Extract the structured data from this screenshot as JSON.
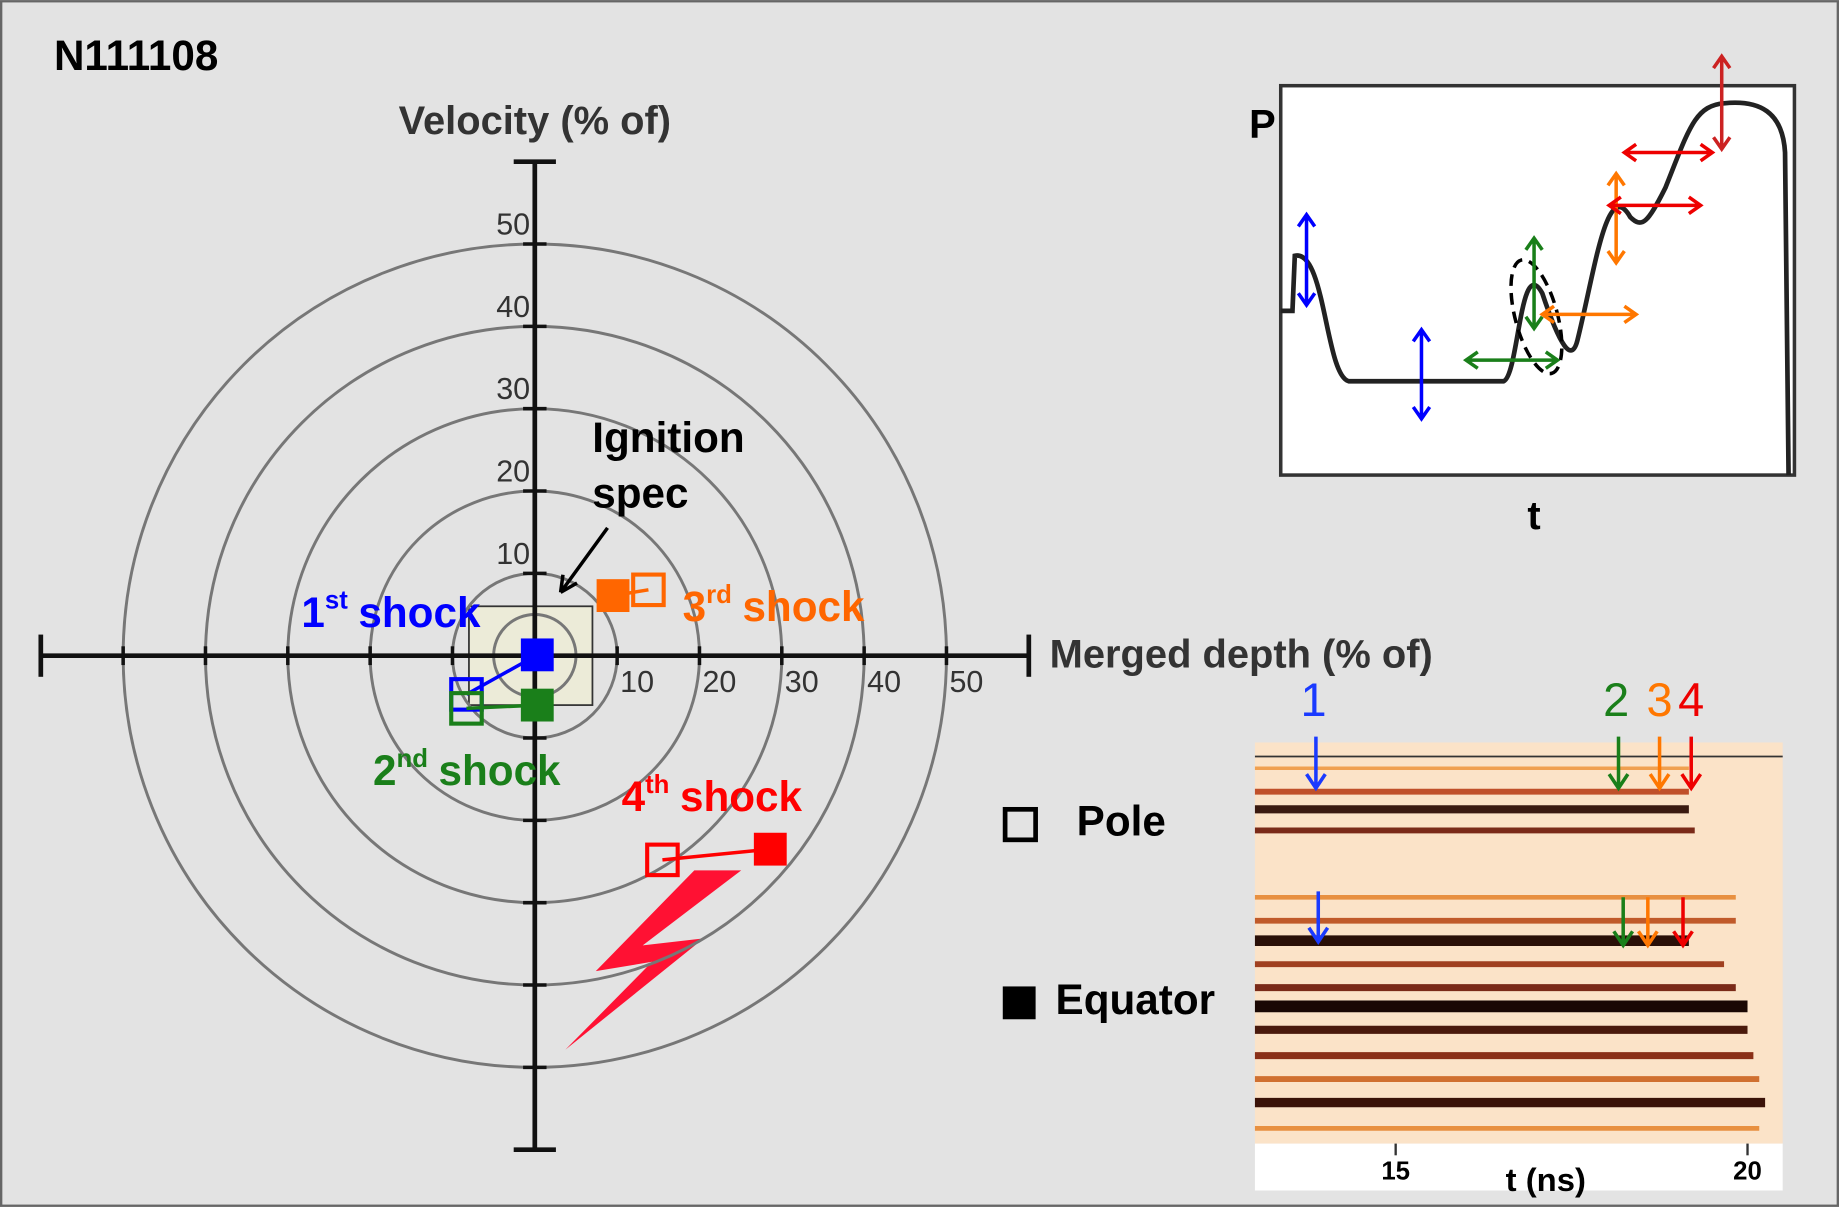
{
  "chart_data": {
    "type": "scatter",
    "title": "N111108",
    "xlabel": "Merged depth (% of)",
    "ylabel": "Velocity (% of)",
    "xlim": [
      -60,
      60
    ],
    "ylim": [
      -60,
      60
    ],
    "xticks": [
      10,
      20,
      30,
      40,
      50
    ],
    "yticks": [
      10,
      20,
      30,
      40,
      50
    ],
    "rings": [
      5,
      10,
      20,
      30,
      40,
      50
    ],
    "spec_box": {
      "xlim": [
        -8,
        7
      ],
      "ylim": [
        -6,
        6
      ]
    },
    "spec_label": [
      "Ignition",
      "spec"
    ],
    "legend": {
      "pole": "Pole",
      "equator": "Equator"
    },
    "series": [
      {
        "ordinal": "1",
        "suffix": "st",
        "label": "shock",
        "color": "#0000ff",
        "pole": [
          -8.3,
          -4.7
        ],
        "equator": [
          0.3,
          0.1
        ]
      },
      {
        "ordinal": "2",
        "suffix": "nd",
        "label": "shock",
        "color": "#1a7f1a",
        "pole": [
          -8.3,
          -6.4
        ],
        "equator": [
          0.3,
          -6
        ]
      },
      {
        "ordinal": "3",
        "suffix": "rd",
        "label": "shock",
        "color": "#ff6600",
        "pole": [
          13.8,
          8
        ],
        "equator": [
          9.5,
          7.3
        ]
      },
      {
        "ordinal": "4",
        "suffix": "th",
        "label": "shock",
        "color": "#ff0000",
        "pole": [
          15.5,
          -24.8
        ],
        "equator": [
          28.6,
          -23.5
        ]
      }
    ],
    "pulse_inset": {
      "ylabel": "P",
      "xlabel": "t"
    },
    "streak_inset": {
      "xlabel": "t (ns)",
      "xlim": [
        13,
        20.5
      ],
      "xticks": [
        15,
        20
      ],
      "arrow_labels": [
        "1",
        "2",
        "3",
        "4"
      ]
    }
  }
}
